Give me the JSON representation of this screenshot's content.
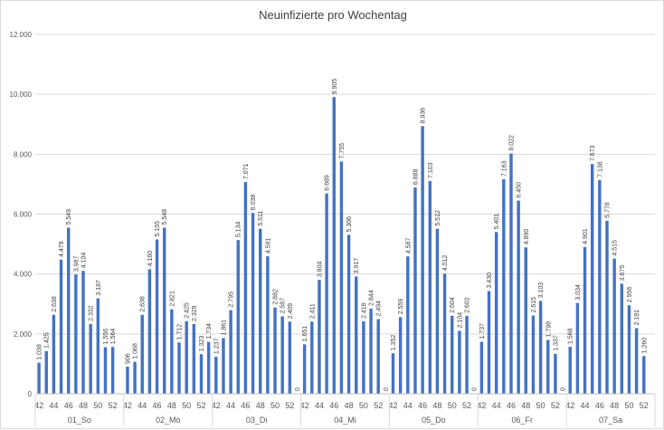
{
  "chart_data": {
    "type": "bar",
    "title": "Neuinfizierte pro Wochentag",
    "xlabel": "",
    "ylabel": "",
    "ylim": [
      0,
      12000
    ],
    "yticks": [
      "0",
      "2.000",
      "4.000",
      "6.000",
      "8.000",
      "10.000",
      "12.000"
    ],
    "grid": true,
    "legend": "none",
    "bar_color": "#4472C4",
    "week_tick_labels": [
      "42",
      "44",
      "46",
      "48",
      "50",
      "52"
    ],
    "groups": [
      {
        "name": "01_So",
        "weeks": [
          42,
          43,
          44,
          45,
          46,
          47,
          48,
          49,
          50,
          51,
          52,
          53
        ],
        "values": [
          1038,
          1425,
          2638,
          4479,
          5549,
          3987,
          4104,
          2332,
          3187,
          1556,
          1564,
          0
        ],
        "labels": [
          "1.038",
          "1.425",
          "2.638",
          "4.479",
          "5.549",
          "3.987",
          "4.104",
          "2.332",
          "3.187",
          "1.556",
          "1.564",
          ""
        ]
      },
      {
        "name": "02_Mo",
        "weeks": [
          42,
          43,
          44,
          45,
          46,
          47,
          48,
          49,
          50,
          51,
          52,
          53
        ],
        "values": [
          906,
          1068,
          2638,
          4160,
          5155,
          5548,
          2821,
          1712,
          2425,
          2329,
          1323,
          1734
        ],
        "labels": [
          "906",
          "1.068",
          "2.638",
          "4.160",
          "5.155",
          "5.548",
          "2.821",
          "1.712",
          "2.425",
          "2.329",
          "1.323",
          "1.734"
        ]
      },
      {
        "name": "03_Di",
        "weeks": [
          42,
          43,
          44,
          45,
          46,
          47,
          48,
          49,
          50,
          51,
          52,
          53
        ],
        "values": [
          1237,
          1861,
          2795,
          5134,
          7071,
          6038,
          5511,
          4591,
          2882,
          2587,
          2409,
          0
        ],
        "labels": [
          "1.237",
          "1.861",
          "2.795",
          "5.134",
          "7.071",
          "6.038",
          "5.511",
          "4.591",
          "2.882",
          "2.587",
          "2.409",
          "0"
        ]
      },
      {
        "name": "04_Mi",
        "weeks": [
          42,
          43,
          44,
          45,
          46,
          47,
          48,
          49,
          50,
          51,
          52,
          53
        ],
        "values": [
          1651,
          2411,
          3804,
          6689,
          9905,
          7755,
          5306,
          3917,
          2418,
          2844,
          2494,
          0
        ],
        "labels": [
          "1.651",
          "2.411",
          "3.804",
          "6.689",
          "9.905",
          "7.755",
          "5.306",
          "3.917",
          "2.418",
          "2.844",
          "2.494",
          "0"
        ]
      },
      {
        "name": "05_Do",
        "weeks": [
          42,
          43,
          44,
          45,
          46,
          47,
          48,
          49,
          50,
          51,
          52,
          53
        ],
        "values": [
          1352,
          2559,
          4587,
          6888,
          8936,
          7103,
          5512,
          4012,
          2604,
          2104,
          2602,
          0
        ],
        "labels": [
          "1.352",
          "2.559",
          "4.587",
          "6.888",
          "8.936",
          "7.103",
          "5.512",
          "4.012",
          "2.604",
          "2.104",
          "2.602",
          "0"
        ]
      },
      {
        "name": "06_Fr",
        "weeks": [
          42,
          43,
          44,
          45,
          46,
          47,
          48,
          49,
          50,
          51,
          52,
          53
        ],
        "values": [
          1737,
          3430,
          5401,
          7163,
          8022,
          6450,
          4890,
          2615,
          3103,
          1798,
          1337,
          0
        ],
        "labels": [
          "1.737",
          "3.430",
          "5.401",
          "7.163",
          "8.022",
          "6.450",
          "4.890",
          "2.615",
          "3.103",
          "1.798",
          "1.337",
          "0"
        ]
      },
      {
        "name": "07_Sa",
        "weeks": [
          42,
          43,
          44,
          45,
          46,
          47,
          48,
          49,
          50,
          51,
          52,
          53
        ],
        "values": [
          1568,
          3034,
          4901,
          7673,
          7138,
          5778,
          4515,
          3675,
          2956,
          2191,
          1260,
          0
        ],
        "labels": [
          "1.568",
          "3.034",
          "4.901",
          "7.673",
          "7.138",
          "5.778",
          "4.515",
          "3.675",
          "2.956",
          "2.191",
          "1.260",
          ""
        ]
      }
    ]
  }
}
